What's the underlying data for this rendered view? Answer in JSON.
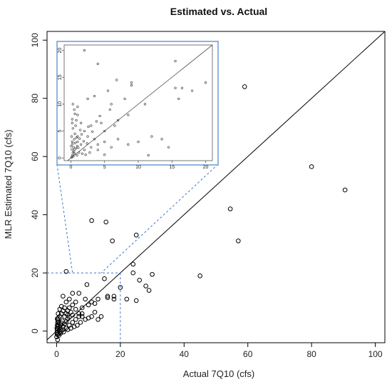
{
  "chart_data": {
    "type": "scatter",
    "title": "Estimated vs. Actual",
    "xlabel": "Actual 7Q10 (cfs)",
    "ylabel": "MLR Estimated 7Q10 (cfs)",
    "xlim": [
      -3,
      103
    ],
    "ylim": [
      -4,
      103
    ],
    "xticks": [
      "0",
      "20",
      "40",
      "60",
      "80",
      "100"
    ],
    "yticks": [
      "0",
      "20",
      "40",
      "60",
      "80",
      "100"
    ],
    "reference_line": "1:1",
    "grid": false,
    "points": [
      [
        59,
        84
      ],
      [
        80,
        56.5
      ],
      [
        90.5,
        48.5
      ],
      [
        54.5,
        42
      ],
      [
        57,
        31
      ],
      [
        11,
        38
      ],
      [
        15.5,
        37.5
      ],
      [
        17.5,
        31
      ],
      [
        25,
        33
      ],
      [
        45,
        19
      ],
      [
        3,
        20.5
      ],
      [
        24,
        23
      ],
      [
        24,
        20
      ],
      [
        30,
        19.5
      ],
      [
        26,
        17.5
      ],
      [
        28,
        15.5
      ],
      [
        20,
        15
      ],
      [
        15,
        18
      ],
      [
        9.5,
        16
      ],
      [
        7,
        13
      ],
      [
        5,
        13
      ],
      [
        29,
        14
      ],
      [
        25,
        10.5
      ],
      [
        22,
        11
      ],
      [
        18,
        12
      ],
      [
        16,
        11.5
      ],
      [
        16,
        12
      ],
      [
        18,
        11
      ],
      [
        11,
        10
      ],
      [
        12,
        9.5
      ],
      [
        13,
        11
      ],
      [
        9,
        11
      ],
      [
        8,
        8
      ],
      [
        10,
        9
      ],
      [
        8,
        6
      ],
      [
        7,
        5
      ],
      [
        6,
        4
      ],
      [
        5,
        3
      ],
      [
        4,
        2
      ],
      [
        3,
        1
      ],
      [
        2,
        0.5
      ],
      [
        1.5,
        0
      ],
      [
        1,
        -0.5
      ],
      [
        0.5,
        -1
      ],
      [
        0,
        -2
      ],
      [
        0.3,
        -3
      ],
      [
        0.5,
        4.5
      ],
      [
        1,
        5
      ],
      [
        1.5,
        6
      ],
      [
        2,
        7
      ],
      [
        2.5,
        8
      ],
      [
        3,
        6
      ],
      [
        3.5,
        7
      ],
      [
        4,
        8
      ],
      [
        4.5,
        6.5
      ],
      [
        5,
        5.5
      ],
      [
        6,
        7.5
      ],
      [
        7,
        6
      ],
      [
        8,
        5
      ],
      [
        9,
        4
      ],
      [
        10,
        4.5
      ],
      [
        11,
        5
      ],
      [
        12,
        6.5
      ],
      [
        13,
        4
      ],
      [
        14,
        5
      ],
      [
        6,
        10
      ],
      [
        4,
        11
      ],
      [
        2,
        12
      ],
      [
        3,
        10
      ],
      [
        5,
        9
      ],
      [
        0.2,
        0.2
      ],
      [
        0.3,
        0.8
      ],
      [
        0.4,
        1.5
      ],
      [
        0.5,
        2.2
      ],
      [
        0.6,
        3
      ],
      [
        0.1,
        1
      ],
      [
        0.2,
        2
      ],
      [
        0.3,
        3
      ],
      [
        0.4,
        3.8
      ],
      [
        0.2,
        4.2
      ],
      [
        0.8,
        0.3
      ],
      [
        1,
        1.2
      ],
      [
        1.2,
        2
      ],
      [
        1.5,
        2.8
      ],
      [
        1.8,
        3.5
      ],
      [
        2,
        1.5
      ],
      [
        2.5,
        2.5
      ],
      [
        3,
        3.3
      ],
      [
        3.5,
        4.2
      ],
      [
        4,
        4.8
      ],
      [
        0.5,
        6
      ],
      [
        1,
        7.5
      ],
      [
        1.5,
        8.5
      ],
      [
        2.5,
        5
      ],
      [
        3.5,
        5.5
      ],
      [
        6.5,
        2
      ],
      [
        7.5,
        3
      ],
      [
        5.5,
        1.5
      ],
      [
        4.5,
        1
      ],
      [
        3.5,
        0.5
      ],
      [
        0.1,
        -0.5
      ],
      [
        0.2,
        -1.2
      ],
      [
        0.7,
        -1.5
      ],
      [
        1.2,
        -0.8
      ],
      [
        2.2,
        -0.3
      ]
    ],
    "inset": {
      "xlim": [
        -1,
        21
      ],
      "ylim": [
        -0.5,
        21
      ],
      "xticks": [
        "0",
        "5",
        "10",
        "15",
        "20"
      ],
      "yticks": [
        "0",
        "5",
        "10",
        "15",
        "20"
      ],
      "zoom_window": {
        "x": [
          0,
          20
        ],
        "y": [
          0,
          20
        ]
      },
      "points": [
        [
          2,
          20
        ],
        [
          4,
          17.5
        ],
        [
          6.8,
          14.5
        ],
        [
          9,
          13.5
        ],
        [
          5.5,
          12.5
        ],
        [
          15.5,
          18
        ],
        [
          15.5,
          13
        ],
        [
          18,
          12.5
        ],
        [
          16.5,
          13
        ],
        [
          16,
          11
        ],
        [
          20,
          14
        ],
        [
          2.5,
          11
        ],
        [
          8,
          11
        ],
        [
          6,
          10
        ],
        [
          3.5,
          11.5
        ],
        [
          9,
          14
        ],
        [
          11,
          10
        ],
        [
          8.5,
          8
        ],
        [
          7,
          7
        ],
        [
          6.5,
          6
        ],
        [
          5,
          5
        ],
        [
          4.5,
          6.5
        ],
        [
          3,
          6
        ],
        [
          2,
          5
        ],
        [
          1,
          4
        ],
        [
          1,
          8
        ],
        [
          0.5,
          9
        ],
        [
          0.3,
          10
        ],
        [
          0.8,
          7
        ],
        [
          1.5,
          6.5
        ],
        [
          2.5,
          4
        ],
        [
          3.5,
          3.5
        ],
        [
          4,
          2.5
        ],
        [
          5,
          3
        ],
        [
          6,
          2
        ],
        [
          7,
          3.5
        ],
        [
          8.5,
          2.5
        ],
        [
          10,
          3
        ],
        [
          12,
          4
        ],
        [
          13.5,
          3.5
        ],
        [
          14.5,
          2
        ],
        [
          4,
          1.5
        ],
        [
          3,
          2
        ],
        [
          2,
          1.5
        ],
        [
          1.5,
          2.5
        ],
        [
          1,
          3
        ],
        [
          0.5,
          1.5
        ],
        [
          0.2,
          0.5
        ],
        [
          0.1,
          0.1
        ],
        [
          0.3,
          1
        ],
        [
          0.4,
          2
        ],
        [
          0.2,
          3
        ],
        [
          0.5,
          3.5
        ],
        [
          0.1,
          4
        ],
        [
          0.6,
          4.5
        ],
        [
          0.3,
          5.5
        ],
        [
          0.7,
          6
        ],
        [
          0.2,
          6.5
        ],
        [
          0.9,
          0.5
        ],
        [
          1.2,
          1
        ],
        [
          1.7,
          0.8
        ],
        [
          2.2,
          0.6
        ],
        [
          2.8,
          1
        ],
        [
          0.05,
          2.2
        ],
        [
          0.15,
          1.6
        ],
        [
          0.25,
          2.6
        ],
        [
          0.35,
          0.3
        ],
        [
          0.45,
          1.2
        ],
        [
          0.55,
          0.8
        ],
        [
          0.65,
          2.8
        ],
        [
          0.75,
          1.8
        ],
        [
          0.85,
          3.8
        ],
        [
          0.95,
          2.2
        ],
        [
          1.1,
          1.9
        ],
        [
          1.3,
          3.6
        ],
        [
          1.6,
          4.4
        ],
        [
          1.9,
          3.1
        ],
        [
          2.4,
          2.7
        ],
        [
          2.6,
          5.8
        ],
        [
          3.2,
          4.9
        ],
        [
          3.8,
          6.8
        ],
        [
          4.3,
          7.8
        ],
        [
          5.8,
          9
        ],
        [
          1.4,
          5.2
        ],
        [
          0.6,
          8.2
        ],
        [
          11.5,
          0.5
        ],
        [
          5,
          0.6
        ],
        [
          0.2,
          7.2
        ],
        [
          1,
          9.5
        ]
      ]
    }
  }
}
